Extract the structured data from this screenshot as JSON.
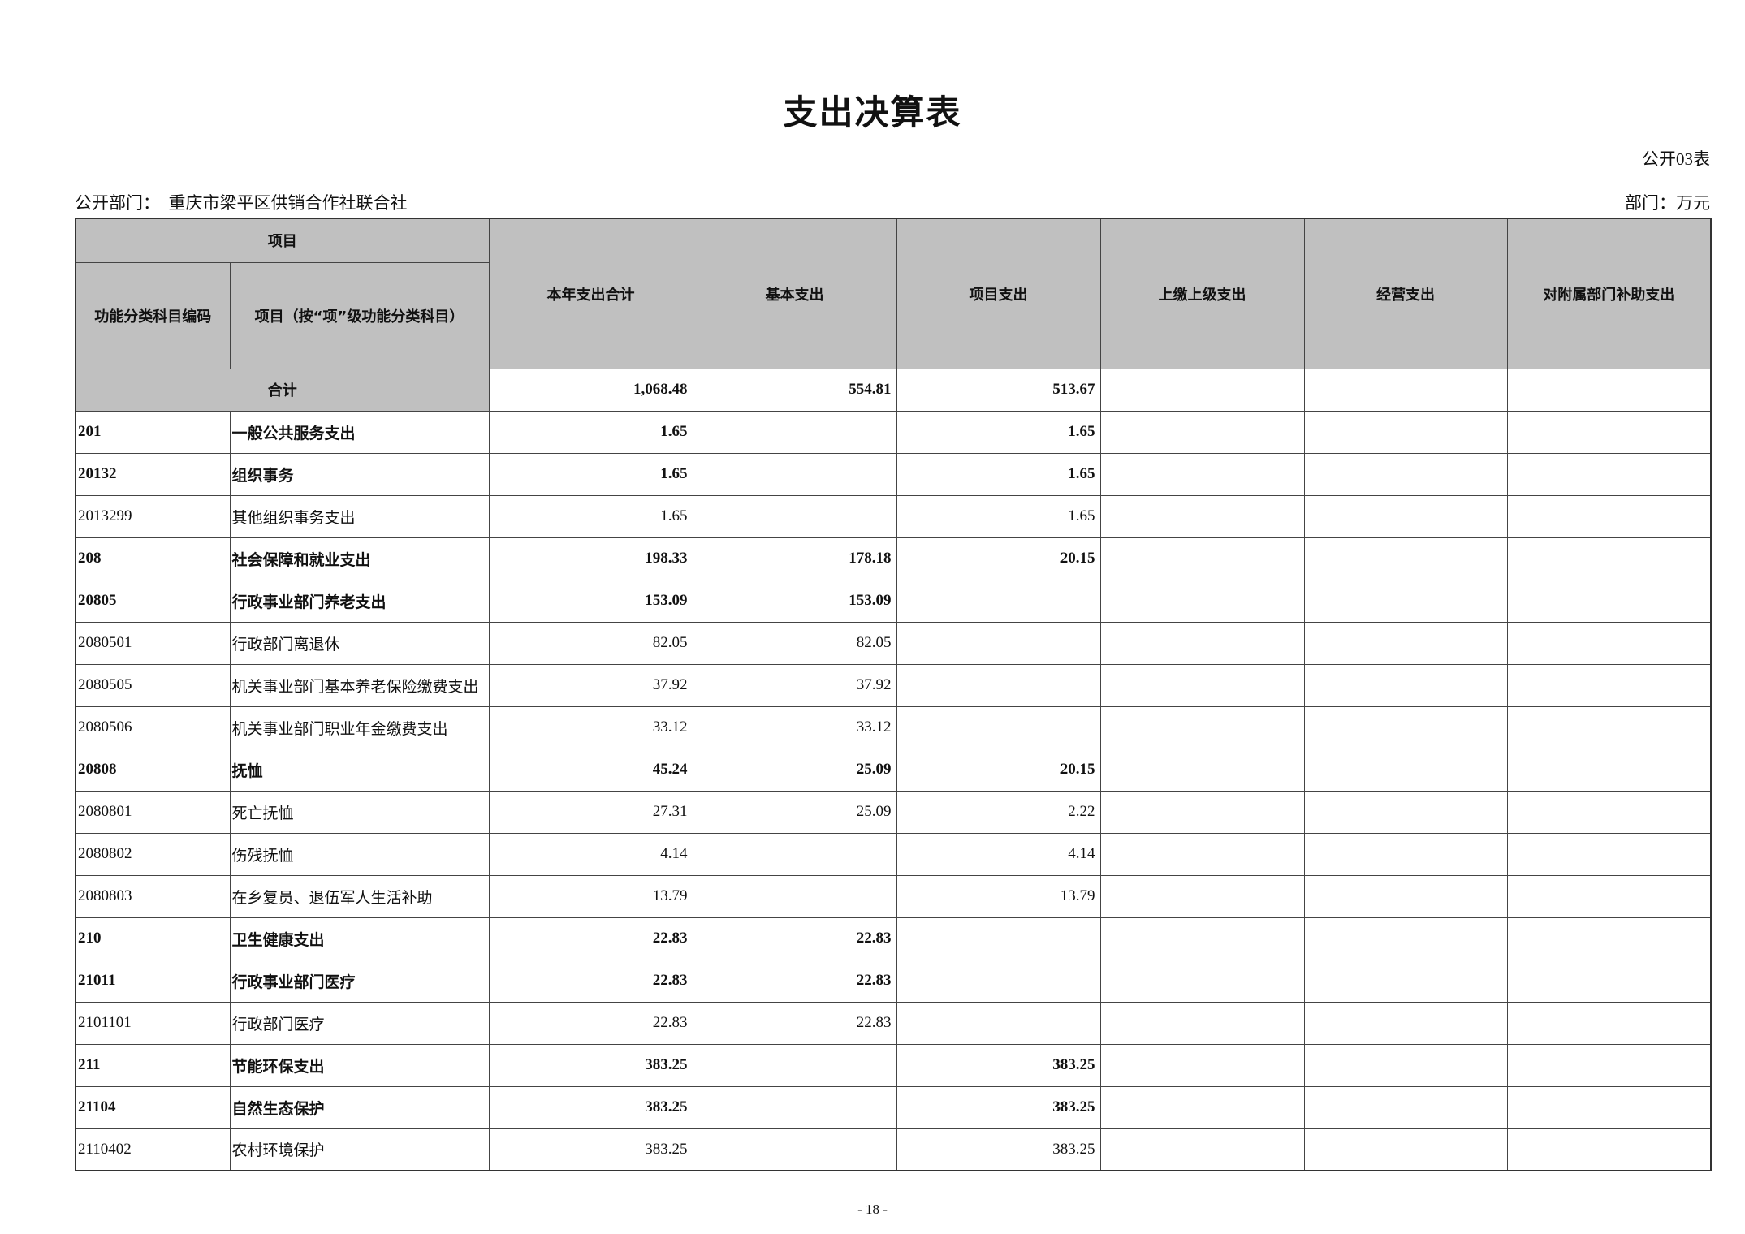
{
  "title": "支出决算表",
  "form_no": "公开03表",
  "department_label": "公开部门：",
  "department": "重庆市梁平区供销合作社联合社",
  "unit": "部门：万元",
  "headers": {
    "item_group": "项目",
    "code": "功能分类科目编码",
    "name": "项目（按“项”级功能分类科目）",
    "cols": [
      "本年支出合计",
      "基本支出",
      "项目支出",
      "上缴上级支出",
      "经营支出",
      "对附属部门补助支出"
    ]
  },
  "total": {
    "label": "合计",
    "values": [
      "1,068.48",
      "554.81",
      "513.67",
      "",
      "",
      ""
    ]
  },
  "rows": [
    {
      "code": "201",
      "name": "一般公共服务支出",
      "bold": true,
      "values": [
        "1.65",
        "",
        "1.65",
        "",
        "",
        ""
      ]
    },
    {
      "code": "20132",
      "name": "组织事务",
      "bold": true,
      "values": [
        "1.65",
        "",
        "1.65",
        "",
        "",
        ""
      ]
    },
    {
      "code": "2013299",
      "name": "其他组织事务支出",
      "bold": false,
      "values": [
        "1.65",
        "",
        "1.65",
        "",
        "",
        ""
      ]
    },
    {
      "code": "208",
      "name": "社会保障和就业支出",
      "bold": true,
      "values": [
        "198.33",
        "178.18",
        "20.15",
        "",
        "",
        ""
      ]
    },
    {
      "code": "20805",
      "name": "行政事业部门养老支出",
      "bold": true,
      "values": [
        "153.09",
        "153.09",
        "",
        "",
        "",
        ""
      ]
    },
    {
      "code": "2080501",
      "name": "行政部门离退休",
      "bold": false,
      "values": [
        "82.05",
        "82.05",
        "",
        "",
        "",
        ""
      ]
    },
    {
      "code": "2080505",
      "name": "机关事业部门基本养老保险缴费支出",
      "bold": false,
      "values": [
        "37.92",
        "37.92",
        "",
        "",
        "",
        ""
      ]
    },
    {
      "code": "2080506",
      "name": "机关事业部门职业年金缴费支出",
      "bold": false,
      "values": [
        "33.12",
        "33.12",
        "",
        "",
        "",
        ""
      ]
    },
    {
      "code": "20808",
      "name": "抚恤",
      "bold": true,
      "values": [
        "45.24",
        "25.09",
        "20.15",
        "",
        "",
        ""
      ]
    },
    {
      "code": "2080801",
      "name": "死亡抚恤",
      "bold": false,
      "values": [
        "27.31",
        "25.09",
        "2.22",
        "",
        "",
        ""
      ]
    },
    {
      "code": "2080802",
      "name": "伤残抚恤",
      "bold": false,
      "values": [
        "4.14",
        "",
        "4.14",
        "",
        "",
        ""
      ]
    },
    {
      "code": "2080803",
      "name": "在乡复员、退伍军人生活补助",
      "bold": false,
      "values": [
        "13.79",
        "",
        "13.79",
        "",
        "",
        ""
      ]
    },
    {
      "code": "210",
      "name": "卫生健康支出",
      "bold": true,
      "values": [
        "22.83",
        "22.83",
        "",
        "",
        "",
        ""
      ]
    },
    {
      "code": "21011",
      "name": "行政事业部门医疗",
      "bold": true,
      "values": [
        "22.83",
        "22.83",
        "",
        "",
        "",
        ""
      ]
    },
    {
      "code": "2101101",
      "name": "行政部门医疗",
      "bold": false,
      "values": [
        "22.83",
        "22.83",
        "",
        "",
        "",
        ""
      ]
    },
    {
      "code": "211",
      "name": "节能环保支出",
      "bold": true,
      "values": [
        "383.25",
        "",
        "383.25",
        "",
        "",
        ""
      ]
    },
    {
      "code": "21104",
      "name": "自然生态保护",
      "bold": true,
      "values": [
        "383.25",
        "",
        "383.25",
        "",
        "",
        ""
      ]
    },
    {
      "code": "2110402",
      "name": "农村环境保护",
      "bold": false,
      "values": [
        "383.25",
        "",
        "383.25",
        "",
        "",
        ""
      ]
    }
  ],
  "page_number": "- 18 -"
}
